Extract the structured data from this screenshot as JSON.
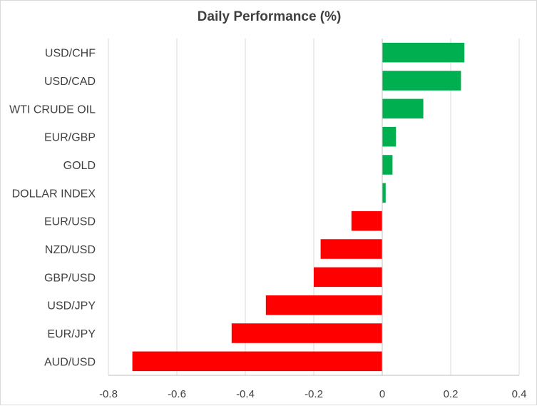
{
  "chart_data": {
    "type": "bar",
    "orientation": "horizontal",
    "title": "Daily Performance (%)",
    "categories": [
      "USD/CHF",
      "USD/CAD",
      "WTI CRUDE OIL",
      "EUR/GBP",
      "GOLD",
      "DOLLAR INDEX",
      "EUR/USD",
      "NZD/USD",
      "GBP/USD",
      "USD/JPY",
      "EUR/JPY",
      "AUD/USD"
    ],
    "values": [
      0.24,
      0.23,
      0.12,
      0.04,
      0.03,
      0.01,
      -0.09,
      -0.18,
      -0.2,
      -0.34,
      -0.44,
      -0.73
    ],
    "xlim": [
      -0.8,
      0.4
    ],
    "xticks": [
      "-0.8",
      "-0.6",
      "-0.4",
      "-0.2",
      "0",
      "0.2",
      "0.4"
    ],
    "xtick_values": [
      -0.8,
      -0.6,
      -0.4,
      -0.2,
      0,
      0.2,
      0.4
    ],
    "grid": "vertical",
    "legend": "none",
    "colors": {
      "positive": "#00b050",
      "negative": "#ff0000",
      "grid": "#d9d9d9",
      "axis": "#bfbfbf",
      "text": "#404040"
    }
  }
}
